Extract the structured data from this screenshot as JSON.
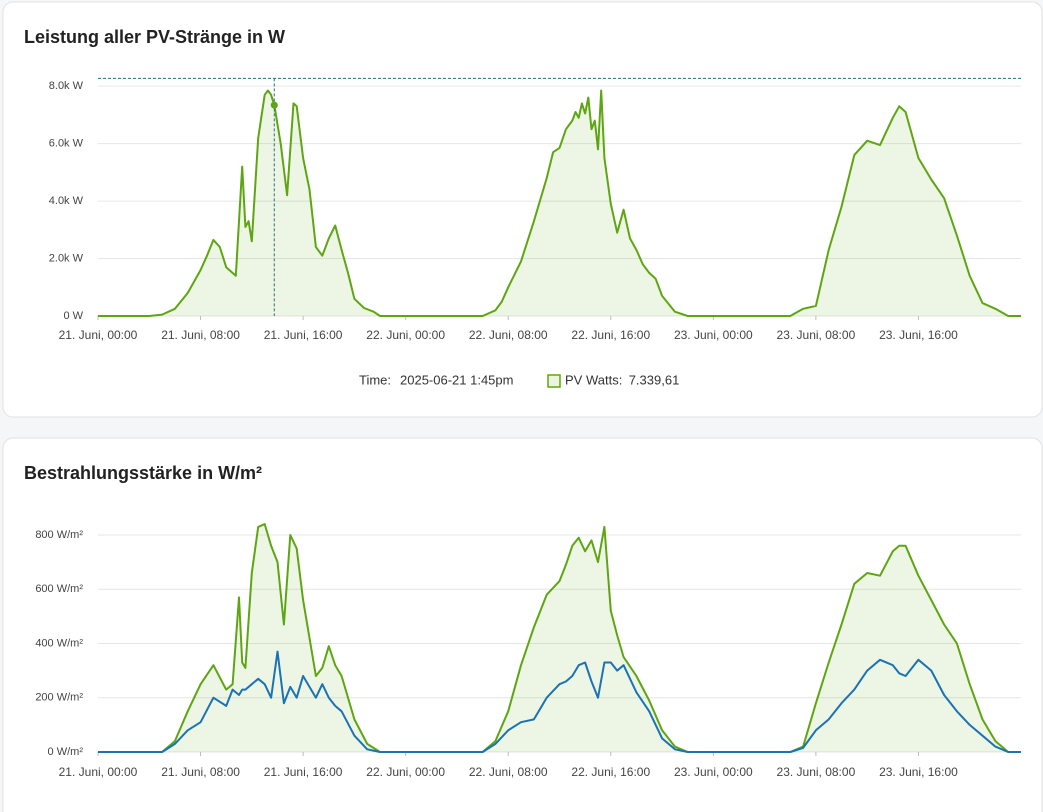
{
  "chart_data": [
    {
      "type": "line",
      "title": "Leistung aller PV-Stränge in W",
      "area": true,
      "x": [
        "2025-06-21T00:00",
        "2025-06-21T04:00",
        "2025-06-21T05:00",
        "2025-06-21T06:00",
        "2025-06-21T07:00",
        "2025-06-21T08:00",
        "2025-06-21T08:30",
        "2025-06-21T09:00",
        "2025-06-21T09:30",
        "2025-06-21T10:00",
        "2025-06-21T10:45",
        "2025-06-21T11:15",
        "2025-06-21T11:30",
        "2025-06-21T11:45",
        "2025-06-21T12:00",
        "2025-06-21T12:30",
        "2025-06-21T13:00",
        "2025-06-21T13:15",
        "2025-06-21T13:30",
        "2025-06-21T13:45",
        "2025-06-21T14:15",
        "2025-06-21T14:45",
        "2025-06-21T15:15",
        "2025-06-21T15:30",
        "2025-06-21T16:00",
        "2025-06-21T16:30",
        "2025-06-21T17:00",
        "2025-06-21T17:30",
        "2025-06-21T18:00",
        "2025-06-21T18:30",
        "2025-06-21T19:00",
        "2025-06-21T19:30",
        "2025-06-21T20:00",
        "2025-06-21T20:45",
        "2025-06-21T21:30",
        "2025-06-21T22:00",
        "2025-06-22T06:00",
        "2025-06-22T07:00",
        "2025-06-22T07:30",
        "2025-06-22T08:00",
        "2025-06-22T09:00",
        "2025-06-22T10:00",
        "2025-06-22T11:00",
        "2025-06-22T11:30",
        "2025-06-22T12:00",
        "2025-06-22T12:30",
        "2025-06-22T13:00",
        "2025-06-22T13:15",
        "2025-06-22T13:30",
        "2025-06-22T13:45",
        "2025-06-22T14:00",
        "2025-06-22T14:15",
        "2025-06-22T14:30",
        "2025-06-22T14:45",
        "2025-06-22T15:00",
        "2025-06-22T15:15",
        "2025-06-22T15:30",
        "2025-06-22T16:00",
        "2025-06-22T16:30",
        "2025-06-22T17:00",
        "2025-06-22T17:30",
        "2025-06-22T18:00",
        "2025-06-22T18:30",
        "2025-06-22T19:00",
        "2025-06-22T19:30",
        "2025-06-22T20:00",
        "2025-06-22T21:00",
        "2025-06-22T22:00",
        "2025-06-23T06:00",
        "2025-06-23T07:00",
        "2025-06-23T08:00",
        "2025-06-23T09:00",
        "2025-06-23T10:00",
        "2025-06-23T11:00",
        "2025-06-23T12:00",
        "2025-06-23T13:00",
        "2025-06-23T14:00",
        "2025-06-23T14:30",
        "2025-06-23T15:00",
        "2025-06-23T16:00",
        "2025-06-23T17:00",
        "2025-06-23T18:00",
        "2025-06-23T19:00",
        "2025-06-23T20:00",
        "2025-06-23T21:00",
        "2025-06-23T22:00",
        "2025-06-23T23:00",
        "2025-06-24T00:00"
      ],
      "series": [
        {
          "name": "PV Watts",
          "color": "#5ea611",
          "values": [
            0,
            0,
            50,
            250,
            800,
            1600,
            2100,
            2650,
            2400,
            1700,
            1400,
            5200,
            3100,
            3300,
            2600,
            6200,
            7700,
            7850,
            7700,
            7339.61,
            6000,
            4200,
            7400,
            7300,
            5500,
            4400,
            2400,
            2100,
            2700,
            3150,
            2300,
            1500,
            600,
            280,
            150,
            0,
            0,
            200,
            500,
            1000,
            1900,
            3300,
            4800,
            5700,
            5850,
            6500,
            6800,
            7100,
            6900,
            7400,
            7050,
            7600,
            6500,
            6800,
            5800,
            7850,
            5500,
            3900,
            2900,
            3700,
            2700,
            2300,
            1800,
            1500,
            1300,
            700,
            150,
            0,
            0,
            250,
            350,
            2300,
            3800,
            5600,
            6100,
            5950,
            6900,
            7300,
            7100,
            5500,
            4750,
            4100,
            2800,
            1400,
            450,
            250,
            0,
            0
          ]
        }
      ],
      "xlim": [
        "2025-06-21T00:00",
        "2025-06-24T00:00"
      ],
      "xticks": [
        {
          "value": "2025-06-21T00:00",
          "label": "21. Juni, 00:00"
        },
        {
          "value": "2025-06-21T08:00",
          "label": "21. Juni, 08:00"
        },
        {
          "value": "2025-06-21T16:00",
          "label": "21. Juni, 16:00"
        },
        {
          "value": "2025-06-22T00:00",
          "label": "22. Juni, 00:00"
        },
        {
          "value": "2025-06-22T08:00",
          "label": "22. Juni, 08:00"
        },
        {
          "value": "2025-06-22T16:00",
          "label": "22. Juni, 16:00"
        },
        {
          "value": "2025-06-23T00:00",
          "label": "23. Juni, 00:00"
        },
        {
          "value": "2025-06-23T08:00",
          "label": "23. Juni, 08:00"
        },
        {
          "value": "2025-06-23T16:00",
          "label": "23. Juni, 16:00"
        }
      ],
      "ylim": [
        0,
        8270
      ],
      "yticks": [
        {
          "value": 0,
          "label": "0 W"
        },
        {
          "value": 2000,
          "label": "2.0k W"
        },
        {
          "value": 4000,
          "label": "4.0k W"
        },
        {
          "value": 6000,
          "label": "6.0k W"
        },
        {
          "value": 8000,
          "label": "8.0k W"
        }
      ],
      "grid": true,
      "hover": {
        "index": 19,
        "time_label": "Time:",
        "time": "2025-06-21 1:45pm",
        "separator": ":",
        "value_label": "7.339,61"
      }
    },
    {
      "type": "line",
      "title": "Bestrahlungsstärke in W/m²",
      "area": true,
      "x": [
        "2025-06-21T00:00",
        "2025-06-21T04:00",
        "2025-06-21T05:00",
        "2025-06-21T06:00",
        "2025-06-21T07:00",
        "2025-06-21T08:00",
        "2025-06-21T09:00",
        "2025-06-21T10:00",
        "2025-06-21T10:30",
        "2025-06-21T11:00",
        "2025-06-21T11:15",
        "2025-06-21T11:30",
        "2025-06-21T12:00",
        "2025-06-21T12:30",
        "2025-06-21T13:00",
        "2025-06-21T13:30",
        "2025-06-21T14:00",
        "2025-06-21T14:30",
        "2025-06-21T15:00",
        "2025-06-21T15:30",
        "2025-06-21T16:00",
        "2025-06-21T17:00",
        "2025-06-21T17:30",
        "2025-06-21T18:00",
        "2025-06-21T18:30",
        "2025-06-21T19:00",
        "2025-06-21T20:00",
        "2025-06-21T21:00",
        "2025-06-21T22:00",
        "2025-06-22T06:00",
        "2025-06-22T07:00",
        "2025-06-22T08:00",
        "2025-06-22T09:00",
        "2025-06-22T10:00",
        "2025-06-22T11:00",
        "2025-06-22T12:00",
        "2025-06-22T12:30",
        "2025-06-22T13:00",
        "2025-06-22T13:30",
        "2025-06-22T14:00",
        "2025-06-22T14:30",
        "2025-06-22T15:00",
        "2025-06-22T15:30",
        "2025-06-22T16:00",
        "2025-06-22T16:30",
        "2025-06-22T17:00",
        "2025-06-22T18:00",
        "2025-06-22T19:00",
        "2025-06-22T20:00",
        "2025-06-22T21:00",
        "2025-06-22T22:00",
        "2025-06-23T06:00",
        "2025-06-23T07:00",
        "2025-06-23T08:00",
        "2025-06-23T09:00",
        "2025-06-23T10:00",
        "2025-06-23T11:00",
        "2025-06-23T12:00",
        "2025-06-23T13:00",
        "2025-06-23T14:00",
        "2025-06-23T14:30",
        "2025-06-23T15:00",
        "2025-06-23T16:00",
        "2025-06-23T17:00",
        "2025-06-23T18:00",
        "2025-06-23T19:00",
        "2025-06-23T20:00",
        "2025-06-23T21:00",
        "2025-06-23T22:00",
        "2025-06-23T23:00",
        "2025-06-24T00:00"
      ],
      "series": [
        {
          "color": "#5ea611",
          "values": [
            0,
            0,
            0,
            40,
            150,
            250,
            320,
            230,
            250,
            570,
            330,
            310,
            660,
            830,
            840,
            760,
            700,
            470,
            800,
            750,
            560,
            280,
            310,
            390,
            320,
            280,
            120,
            30,
            0,
            0,
            40,
            150,
            320,
            460,
            580,
            630,
            690,
            760,
            790,
            740,
            780,
            700,
            830,
            520,
            430,
            350,
            280,
            190,
            80,
            20,
            0,
            0,
            20,
            180,
            330,
            470,
            620,
            660,
            650,
            740,
            760,
            760,
            650,
            560,
            470,
            400,
            250,
            120,
            40,
            0,
            0
          ]
        },
        {
          "color": "#1b72b5",
          "values": [
            0,
            0,
            0,
            30,
            80,
            110,
            200,
            170,
            230,
            210,
            230,
            230,
            250,
            270,
            250,
            200,
            370,
            180,
            240,
            200,
            280,
            200,
            250,
            200,
            170,
            150,
            60,
            10,
            0,
            0,
            30,
            80,
            110,
            120,
            200,
            250,
            260,
            280,
            320,
            330,
            260,
            200,
            330,
            330,
            300,
            320,
            220,
            150,
            50,
            10,
            0,
            0,
            15,
            80,
            120,
            180,
            230,
            300,
            340,
            320,
            290,
            280,
            340,
            300,
            210,
            150,
            100,
            60,
            20,
            0,
            0
          ]
        }
      ],
      "xlim": [
        "2025-06-21T00:00",
        "2025-06-24T00:00"
      ],
      "xticks": [
        {
          "value": "2025-06-21T00:00",
          "label": "21. Juni, 00:00"
        },
        {
          "value": "2025-06-21T08:00",
          "label": "21. Juni, 08:00"
        },
        {
          "value": "2025-06-21T16:00",
          "label": "21. Juni, 16:00"
        },
        {
          "value": "2025-06-22T00:00",
          "label": "22. Juni, 00:00"
        },
        {
          "value": "2025-06-22T08:00",
          "label": "22. Juni, 08:00"
        },
        {
          "value": "2025-06-22T16:00",
          "label": "22. Juni, 16:00"
        },
        {
          "value": "2025-06-23T00:00",
          "label": "23. Juni, 00:00"
        },
        {
          "value": "2025-06-23T08:00",
          "label": "23. Juni, 08:00"
        },
        {
          "value": "2025-06-23T16:00",
          "label": "23. Juni, 16:00"
        }
      ],
      "ylim": [
        0,
        870
      ],
      "yticks": [
        {
          "value": 0,
          "label": "0 W/m²"
        },
        {
          "value": 200,
          "label": "200 W/m²"
        },
        {
          "value": 400,
          "label": "400 W/m²"
        },
        {
          "value": 600,
          "label": "600 W/m²"
        },
        {
          "value": 800,
          "label": "800 W/m²"
        }
      ],
      "grid": true
    }
  ]
}
